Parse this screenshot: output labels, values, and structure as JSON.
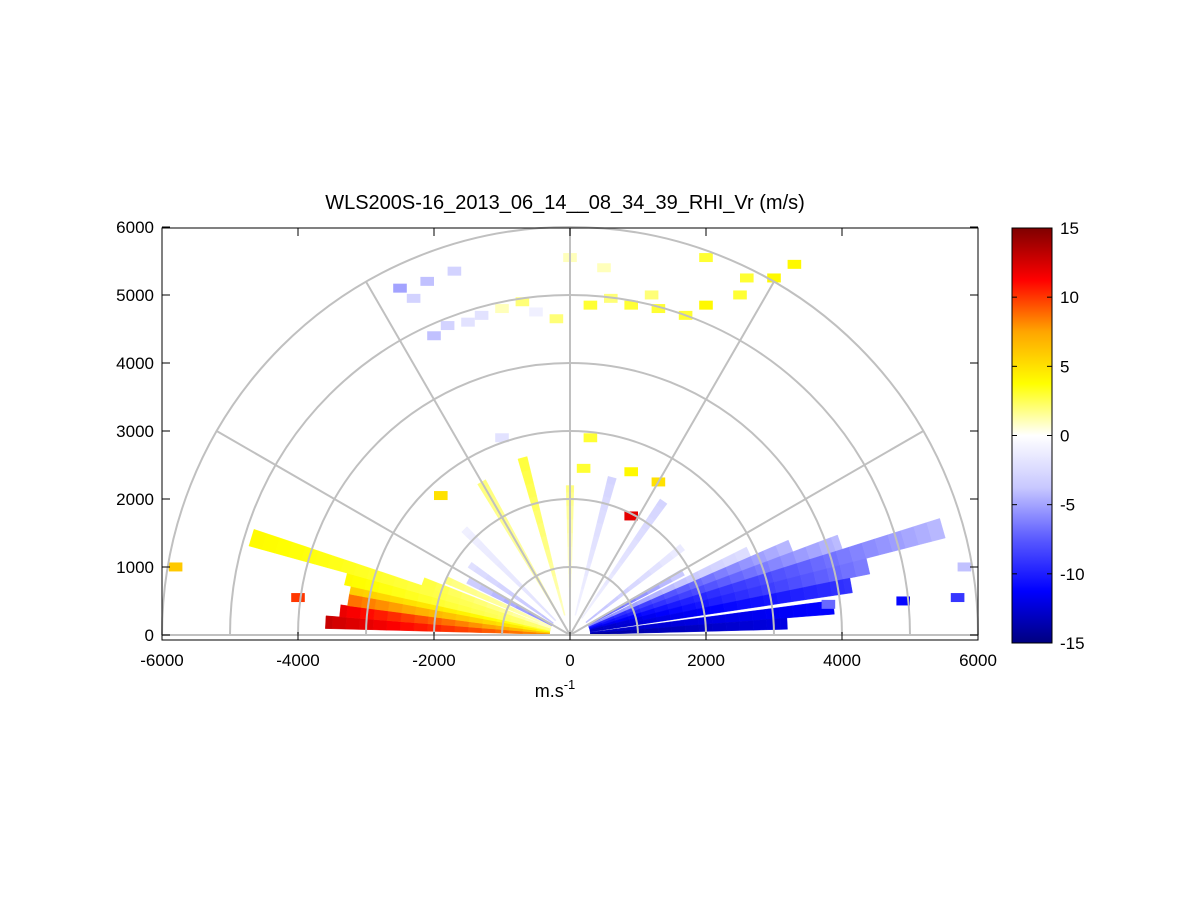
{
  "chart_data": {
    "type": "heatmap",
    "subtype": "polar RHI scan",
    "title": "WLS200S-16_2013_06_14__08_34_39_RHI_Vr (m/s)",
    "xlabel_base": "m.s",
    "xlabel_sup": "-1",
    "ylabel": "",
    "xlim": [
      -6000,
      6000
    ],
    "ylim": [
      0,
      6000
    ],
    "xticks": [
      -6000,
      -4000,
      -2000,
      0,
      2000,
      4000,
      6000
    ],
    "yticks": [
      0,
      1000,
      2000,
      3000,
      4000,
      5000,
      6000
    ],
    "range_rings": [
      1000,
      2000,
      3000,
      4000,
      5000,
      6000
    ],
    "spoke_angles_deg": [
      0,
      30,
      60,
      90,
      120,
      150,
      180
    ],
    "colorbar": {
      "min": -15,
      "max": 15,
      "ticks": [
        15,
        10,
        5,
        0,
        -5,
        -10,
        -15
      ],
      "colors": [
        "#00007f",
        "#0000ff",
        "#5a5aff",
        "#c8c8ff",
        "#ffffff",
        "#ffff00",
        "#ffa500",
        "#ff0000",
        "#7f0000"
      ]
    },
    "grid": true,
    "beams": [
      {
        "elev_deg": 3,
        "r_min": 300,
        "r_max": 3600,
        "v_near": 8,
        "v_far": 13
      },
      {
        "elev_deg": 6,
        "r_min": 300,
        "r_max": 3400,
        "v_near": 6,
        "v_far": 12
      },
      {
        "elev_deg": 9,
        "r_min": 300,
        "r_max": 3300,
        "v_near": 4,
        "v_far": 9
      },
      {
        "elev_deg": 12,
        "r_min": 300,
        "r_max": 3300,
        "v_near": 3,
        "v_far": 6
      },
      {
        "elev_deg": 14,
        "r_min": 300,
        "r_max": 3400,
        "v_near": 2,
        "v_far": 4
      },
      {
        "elev_deg": 17,
        "r_min": 300,
        "r_max": 4900,
        "v_near": 2,
        "v_far": 4
      },
      {
        "elev_deg": 20,
        "r_min": 300,
        "r_max": 2300,
        "v_near": 1,
        "v_far": 3
      },
      {
        "elev_deg": 24,
        "r_min": 300,
        "r_max": 2000,
        "v_near": 1,
        "v_far": 2
      },
      {
        "elev_deg": 28,
        "r_min": 300,
        "r_max": 1700,
        "v_near": -6,
        "v_far": -3
      },
      {
        "elev_deg": 35,
        "r_min": 300,
        "r_max": 1800,
        "v_near": -4,
        "v_far": -2
      },
      {
        "elev_deg": 45,
        "r_min": 300,
        "r_max": 2200,
        "v_near": -2,
        "v_far": -1
      },
      {
        "elev_deg": 60,
        "r_min": 300,
        "r_max": 2600,
        "v_near": 1,
        "v_far": 2
      },
      {
        "elev_deg": 75,
        "r_min": 300,
        "r_max": 2700,
        "v_near": 1,
        "v_far": 3
      },
      {
        "elev_deg": 90,
        "r_min": 300,
        "r_max": 2200,
        "v_near": 0,
        "v_far": 2
      },
      {
        "elev_deg": 105,
        "r_min": 300,
        "r_max": 2400,
        "v_near": -1,
        "v_far": -3
      },
      {
        "elev_deg": 125,
        "r_min": 300,
        "r_max": 2400,
        "v_near": -1,
        "v_far": -3
      },
      {
        "elev_deg": 142,
        "r_min": 300,
        "r_max": 2100,
        "v_near": -4,
        "v_far": -1
      },
      {
        "elev_deg": 151,
        "r_min": 300,
        "r_max": 1900,
        "v_near": -8,
        "v_far": -3
      },
      {
        "elev_deg": 155,
        "r_min": 300,
        "r_max": 2900,
        "v_near": -6,
        "v_far": -2
      },
      {
        "elev_deg": 158,
        "r_min": 300,
        "r_max": 3500,
        "v_near": -10,
        "v_far": -4
      },
      {
        "elev_deg": 161,
        "r_min": 300,
        "r_max": 4200,
        "v_near": -11,
        "v_far": -4
      },
      {
        "elev_deg": 164,
        "r_min": 300,
        "r_max": 5700,
        "v_near": -12,
        "v_far": -4
      },
      {
        "elev_deg": 167,
        "r_min": 300,
        "r_max": 4500,
        "v_near": -13,
        "v_far": -6
      },
      {
        "elev_deg": 170,
        "r_min": 300,
        "r_max": 4200,
        "v_near": -13,
        "v_far": -9
      },
      {
        "elev_deg": 174,
        "r_min": 300,
        "r_max": 3900,
        "v_near": -13,
        "v_far": -11
      },
      {
        "elev_deg": 177,
        "r_min": 300,
        "r_max": 3200,
        "v_near": -14,
        "v_far": -12
      }
    ],
    "scatter_cells": [
      {
        "x": -2000,
        "y": 4400,
        "v": -4
      },
      {
        "x": -1800,
        "y": 4550,
        "v": -3
      },
      {
        "x": -1500,
        "y": 4600,
        "v": -2
      },
      {
        "x": -1300,
        "y": 4700,
        "v": -2
      },
      {
        "x": -1000,
        "y": 4800,
        "v": 1
      },
      {
        "x": -700,
        "y": 4900,
        "v": 2
      },
      {
        "x": -500,
        "y": 4750,
        "v": -1
      },
      {
        "x": -200,
        "y": 4650,
        "v": 2
      },
      {
        "x": 300,
        "y": 4850,
        "v": 3
      },
      {
        "x": 600,
        "y": 4950,
        "v": 2
      },
      {
        "x": 900,
        "y": 4850,
        "v": 3
      },
      {
        "x": 1200,
        "y": 5000,
        "v": 2
      },
      {
        "x": 1300,
        "y": 4800,
        "v": 3
      },
      {
        "x": 1700,
        "y": 4700,
        "v": 3
      },
      {
        "x": 2000,
        "y": 4850,
        "v": 4
      },
      {
        "x": 2500,
        "y": 5000,
        "v": 3
      },
      {
        "x": 2600,
        "y": 5250,
        "v": 3
      },
      {
        "x": 3000,
        "y": 5250,
        "v": 4
      },
      {
        "x": 3300,
        "y": 5450,
        "v": 4
      },
      {
        "x": 2000,
        "y": 5550,
        "v": 3
      },
      {
        "x": -2500,
        "y": 5100,
        "v": -5
      },
      {
        "x": -2100,
        "y": 5200,
        "v": -4
      },
      {
        "x": -1700,
        "y": 5350,
        "v": -3
      },
      {
        "x": -2300,
        "y": 4950,
        "v": -3
      },
      {
        "x": 0,
        "y": 5550,
        "v": 1
      },
      {
        "x": 500,
        "y": 5400,
        "v": 1
      },
      {
        "x": -1000,
        "y": 2900,
        "v": -2
      },
      {
        "x": 300,
        "y": 2900,
        "v": 3
      },
      {
        "x": 200,
        "y": 2450,
        "v": 3
      },
      {
        "x": 900,
        "y": 2400,
        "v": 4
      },
      {
        "x": 1300,
        "y": 2250,
        "v": 5
      },
      {
        "x": -1900,
        "y": 2050,
        "v": 5
      },
      {
        "x": 900,
        "y": 1750,
        "v": 12
      },
      {
        "x": -5800,
        "y": 1000,
        "v": 6
      },
      {
        "x": -4000,
        "y": 550,
        "v": 10
      },
      {
        "x": 5800,
        "y": 1000,
        "v": -4
      },
      {
        "x": 5700,
        "y": 550,
        "v": -9
      },
      {
        "x": 4900,
        "y": 500,
        "v": -11
      },
      {
        "x": 3800,
        "y": 450,
        "v": -7
      }
    ]
  }
}
